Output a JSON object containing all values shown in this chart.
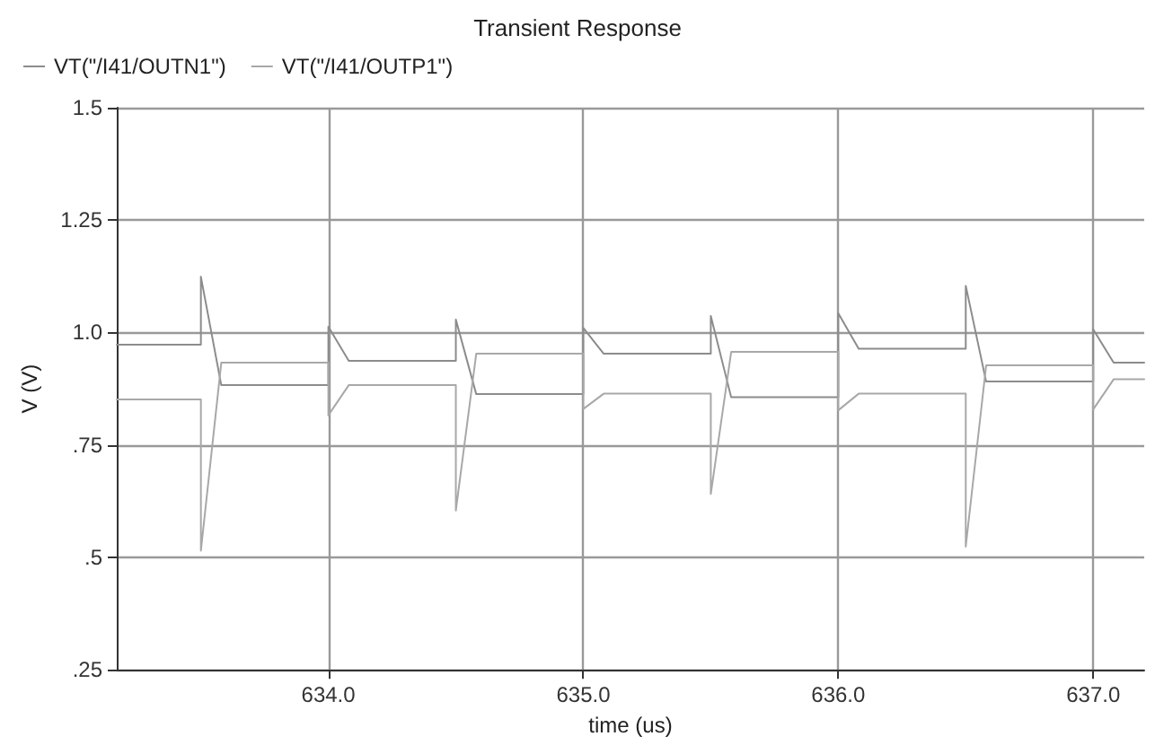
{
  "chart_data": {
    "type": "line",
    "title": "Transient Response",
    "xlabel": "time (us)",
    "ylabel": "V (V)",
    "x": [
      633.17,
      633.5,
      633.5,
      633.58,
      634,
      634,
      634.08,
      634.5,
      634.5,
      634.58,
      635,
      635,
      635.08,
      635.5,
      635.5,
      635.58,
      636,
      636,
      636.08,
      636.5,
      636.5,
      636.58,
      637,
      637,
      637.08,
      637.2
    ],
    "series": [
      {
        "name": "VT(\"/I41/OUTN1\")",
        "color": "#8c8c8c",
        "values": [
          0.973,
          0.973,
          1.124,
          0.883,
          0.883,
          1.013,
          0.937,
          0.937,
          1.029,
          0.863,
          0.863,
          1.01,
          0.953,
          0.953,
          1.037,
          0.856,
          0.856,
          1.043,
          0.964,
          0.964,
          1.104,
          0.891,
          0.891,
          1.007,
          0.933,
          0.933
        ]
      },
      {
        "name": "VT(\"/I41/OUTP1\")",
        "color": "#a8a8a8",
        "values": [
          0.851,
          0.851,
          0.515,
          0.933,
          0.933,
          0.816,
          0.883,
          0.883,
          0.604,
          0.953,
          0.953,
          0.83,
          0.864,
          0.864,
          0.641,
          0.957,
          0.957,
          0.827,
          0.864,
          0.864,
          0.524,
          0.927,
          0.927,
          0.829,
          0.896,
          0.896
        ]
      }
    ],
    "xlim": [
      633.17,
      637.2
    ],
    "xticks": [
      {
        "value": 634,
        "label": "634.0"
      },
      {
        "value": 635,
        "label": "635.0"
      },
      {
        "value": 636,
        "label": "636.0"
      },
      {
        "value": 637,
        "label": "637.0"
      }
    ],
    "ylim": [
      0.25,
      1.5
    ],
    "yticks": [
      {
        "value": 0.25,
        "label": ".25"
      },
      {
        "value": 0.5,
        "label": ".5"
      },
      {
        "value": 0.75,
        "label": ".75"
      },
      {
        "value": 1.0,
        "label": "1.0"
      },
      {
        "value": 1.25,
        "label": "1.25"
      },
      {
        "value": 1.5,
        "label": "1.5"
      }
    ],
    "grid": true,
    "legend": "top left",
    "marker": "none",
    "line_style": "solid"
  }
}
